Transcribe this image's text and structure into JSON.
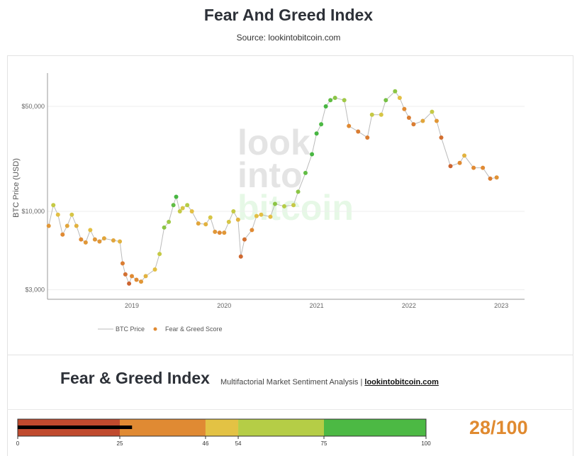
{
  "header": {
    "title": "Fear And Greed Index",
    "source": "Source: lookintobitcoin.com"
  },
  "watermark": [
    "look",
    "into",
    "bitcoin"
  ],
  "chart_data": {
    "type": "scatter",
    "ylabel": "BTC Price (USD)",
    "yscale": "log",
    "ylim": [
      2500,
      90000
    ],
    "xlim": [
      2018.09,
      2023.15
    ],
    "yticks": [
      {
        "value": 50000,
        "label": "$50,000"
      },
      {
        "value": 10000,
        "label": "$10,000"
      },
      {
        "value": 3000,
        "label": "$3,000"
      }
    ],
    "xticks": [
      {
        "value": 2019,
        "label": "2019"
      },
      {
        "value": 2020,
        "label": "2020"
      },
      {
        "value": 2021,
        "label": "2021"
      },
      {
        "value": 2022,
        "label": "2022"
      },
      {
        "value": 2023,
        "label": "2023"
      }
    ],
    "grid": true,
    "legend": {
      "placement": "bottom-left",
      "entries": [
        "BTC Price",
        "Fear & Greed Score"
      ]
    },
    "series": [
      {
        "name": "BTC Price / Fear & Greed Score",
        "points": [
          [
            2018.1,
            8000,
            30
          ],
          [
            2018.15,
            11000,
            55
          ],
          [
            2018.2,
            9500,
            45
          ],
          [
            2018.25,
            7000,
            25
          ],
          [
            2018.3,
            8000,
            35
          ],
          [
            2018.35,
            9500,
            50
          ],
          [
            2018.4,
            8000,
            40
          ],
          [
            2018.45,
            6500,
            25
          ],
          [
            2018.5,
            6200,
            30
          ],
          [
            2018.55,
            7500,
            45
          ],
          [
            2018.6,
            6500,
            30
          ],
          [
            2018.65,
            6300,
            30
          ],
          [
            2018.7,
            6600,
            35
          ],
          [
            2018.8,
            6400,
            35
          ],
          [
            2018.87,
            6300,
            40
          ],
          [
            2018.9,
            4500,
            20
          ],
          [
            2018.93,
            3800,
            15
          ],
          [
            2018.97,
            3300,
            10
          ],
          [
            2019.0,
            3700,
            25
          ],
          [
            2019.05,
            3500,
            25
          ],
          [
            2019.1,
            3400,
            30
          ],
          [
            2019.15,
            3700,
            40
          ],
          [
            2019.25,
            4100,
            45
          ],
          [
            2019.3,
            5200,
            55
          ],
          [
            2019.35,
            7800,
            70
          ],
          [
            2019.4,
            8500,
            65
          ],
          [
            2019.45,
            11000,
            80
          ],
          [
            2019.48,
            12500,
            90
          ],
          [
            2019.52,
            10000,
            55
          ],
          [
            2019.55,
            10500,
            50
          ],
          [
            2019.6,
            11000,
            60
          ],
          [
            2019.65,
            10000,
            45
          ],
          [
            2019.72,
            8300,
            35
          ],
          [
            2019.8,
            8200,
            40
          ],
          [
            2019.85,
            9100,
            50
          ],
          [
            2019.9,
            7300,
            30
          ],
          [
            2019.95,
            7200,
            25
          ],
          [
            2020.0,
            7200,
            30
          ],
          [
            2020.05,
            8500,
            50
          ],
          [
            2020.1,
            10000,
            55
          ],
          [
            2020.15,
            8800,
            40
          ],
          [
            2020.18,
            5000,
            12
          ],
          [
            2020.22,
            6500,
            15
          ],
          [
            2020.3,
            7500,
            25
          ],
          [
            2020.35,
            9300,
            45
          ],
          [
            2020.4,
            9500,
            45
          ],
          [
            2020.5,
            9200,
            45
          ],
          [
            2020.55,
            11200,
            70
          ],
          [
            2020.65,
            10800,
            60
          ],
          [
            2020.75,
            11000,
            55
          ],
          [
            2020.8,
            13500,
            70
          ],
          [
            2020.88,
            18000,
            80
          ],
          [
            2020.95,
            24000,
            88
          ],
          [
            2021.0,
            33000,
            90
          ],
          [
            2021.05,
            38000,
            85
          ],
          [
            2021.1,
            50000,
            90
          ],
          [
            2021.15,
            55000,
            80
          ],
          [
            2021.2,
            57000,
            70
          ],
          [
            2021.3,
            55000,
            65
          ],
          [
            2021.35,
            37000,
            25
          ],
          [
            2021.45,
            34000,
            20
          ],
          [
            2021.55,
            31000,
            20
          ],
          [
            2021.6,
            44000,
            55
          ],
          [
            2021.7,
            44000,
            50
          ],
          [
            2021.75,
            55000,
            75
          ],
          [
            2021.85,
            63000,
            70
          ],
          [
            2021.9,
            57000,
            45
          ],
          [
            2021.95,
            48000,
            25
          ],
          [
            2022.0,
            42000,
            20
          ],
          [
            2022.05,
            38000,
            20
          ],
          [
            2022.15,
            40000,
            35
          ],
          [
            2022.25,
            46000,
            55
          ],
          [
            2022.3,
            40000,
            30
          ],
          [
            2022.35,
            31000,
            15
          ],
          [
            2022.45,
            20000,
            10
          ],
          [
            2022.55,
            21000,
            25
          ],
          [
            2022.6,
            23500,
            40
          ],
          [
            2022.7,
            19500,
            25
          ],
          [
            2022.8,
            19500,
            25
          ],
          [
            2022.88,
            16500,
            20
          ],
          [
            2022.95,
            16800,
            28
          ]
        ]
      }
    ]
  },
  "index_panel": {
    "title": "Fear & Greed Index",
    "subtitle": "Multifactorial Market Sentiment Analysis | ",
    "link": "lookintobitcoin.com",
    "score": 28,
    "score_label": "28/100",
    "bands": [
      {
        "from": 0,
        "to": 25,
        "color": "#c04a2e"
      },
      {
        "from": 25,
        "to": 46,
        "color": "#e08a33"
      },
      {
        "from": 46,
        "to": 54,
        "color": "#e3c244"
      },
      {
        "from": 54,
        "to": 75,
        "color": "#b5cd46"
      },
      {
        "from": 75,
        "to": 100,
        "color": "#4cb944"
      }
    ],
    "ticks": [
      "0",
      "25",
      "46",
      "54",
      "75",
      "100"
    ]
  }
}
